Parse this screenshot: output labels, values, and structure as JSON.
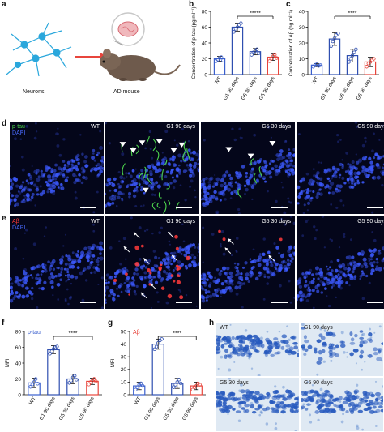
{
  "panel_letters": {
    "a": "a",
    "b": "b",
    "c": "c",
    "d": "d",
    "e": "e",
    "f": "f",
    "g": "g",
    "h": "h"
  },
  "schematic": {
    "left_label": "Neurons",
    "right_label": "AD mouse"
  },
  "groups": [
    "WT",
    "G1 90 days",
    "G5 30 days",
    "G5 90 days"
  ],
  "colors": {
    "wt": "#3a5fcd",
    "g1": "#2f4fb0",
    "g5_30": "#2f4fb0",
    "g5_90": "#e8453c",
    "ptau": "#3a5fcd",
    "abeta": "#e8453c"
  },
  "stain_panels": {
    "d": {
      "legend_marker": "p-tau",
      "legend_dapi": "DAPI",
      "marker_color": "#4cd44c",
      "labels": [
        "WT",
        "G1 90 days",
        "G5 30 days",
        "G5 90 days"
      ]
    },
    "e": {
      "legend_marker": "Aβ",
      "legend_dapi": "DAPI",
      "marker_color": "#ff3b3b",
      "labels": [
        "WT",
        "G1 90 days",
        "G5 30 days",
        "G5 90 days"
      ]
    }
  },
  "histology": {
    "labels": [
      "WT",
      "G1 90 days",
      "G5 30 days",
      "G5 90 days"
    ]
  },
  "chart_data": [
    {
      "id": "b",
      "type": "bar",
      "title": "",
      "xlabel": "",
      "ylabel": "Concentration of p-tau (pg ml⁻¹)",
      "categories": [
        "WT",
        "G1 90 days",
        "G5 30 days",
        "G5 90 days"
      ],
      "values": [
        20,
        60,
        29,
        22
      ],
      "errors": [
        3,
        5,
        4,
        4
      ],
      "points": [
        [
          17,
          19,
          21,
          22,
          18
        ],
        [
          54,
          58,
          60,
          63,
          65
        ],
        [
          25,
          28,
          30,
          32,
          27
        ],
        [
          17,
          20,
          23,
          25,
          21
        ]
      ],
      "ylim": [
        0,
        80
      ],
      "yticks": [
        0,
        20,
        40,
        60,
        80
      ],
      "significance": {
        "from": "G1 90 days",
        "to": "G5 90 days",
        "label": "*****"
      }
    },
    {
      "id": "c",
      "type": "bar",
      "title": "",
      "xlabel": "",
      "ylabel": "Concentration of Aβ (ng ml⁻¹)",
      "categories": [
        "WT",
        "G1 90 days",
        "G5 30 days",
        "G5 90 days"
      ],
      "values": [
        6,
        22.5,
        12,
        8
      ],
      "errors": [
        1,
        4,
        4,
        3
      ],
      "points": [
        [
          5,
          6,
          6.5,
          5.5,
          6
        ],
        [
          18,
          21,
          23,
          25,
          26
        ],
        [
          8,
          10,
          12,
          14,
          16
        ],
        [
          5,
          7,
          8,
          9,
          10
        ]
      ],
      "ylim": [
        0,
        40
      ],
      "yticks": [
        0,
        10,
        20,
        30,
        40
      ],
      "significance": {
        "from": "G1 90 days",
        "to": "G5 90 days",
        "label": "****"
      }
    },
    {
      "id": "f",
      "type": "bar",
      "title": "",
      "xlabel": "",
      "ylabel": "MFI",
      "legend": "p-tau",
      "categories": [
        "WT",
        "G1 90 days",
        "G5 30 days",
        "G5 90 days"
      ],
      "values": [
        15,
        57,
        20,
        17
      ],
      "errors": [
        6,
        5,
        6,
        4
      ],
      "points": [
        [
          10,
          13,
          16,
          20,
          14
        ],
        [
          52,
          55,
          58,
          60,
          61
        ],
        [
          15,
          18,
          22,
          24,
          19
        ],
        [
          13,
          16,
          18,
          20,
          17
        ]
      ],
      "ylim": [
        0,
        80
      ],
      "yticks": [
        0,
        20,
        40,
        60,
        80
      ],
      "significance": {
        "from": "G1 90 days",
        "to": "G5 90 days",
        "label": "****"
      }
    },
    {
      "id": "g",
      "type": "bar",
      "title": "",
      "xlabel": "",
      "ylabel": "MFI",
      "legend": "Aβ",
      "categories": [
        "WT",
        "G1 90 days",
        "G5 30 days",
        "G5 90 days"
      ],
      "values": [
        7,
        40,
        9,
        7
      ],
      "errors": [
        3,
        4,
        4,
        3
      ],
      "points": [
        [
          4,
          6,
          8,
          9,
          7
        ],
        [
          36,
          38,
          41,
          43,
          44
        ],
        [
          6,
          8,
          10,
          12,
          9
        ],
        [
          4,
          6,
          7,
          9,
          8
        ]
      ],
      "ylim": [
        0,
        50
      ],
      "yticks": [
        0,
        10,
        20,
        30,
        40,
        50
      ],
      "significance": {
        "from": "G1 90 days",
        "to": "G5 90 days",
        "label": "****"
      }
    }
  ]
}
